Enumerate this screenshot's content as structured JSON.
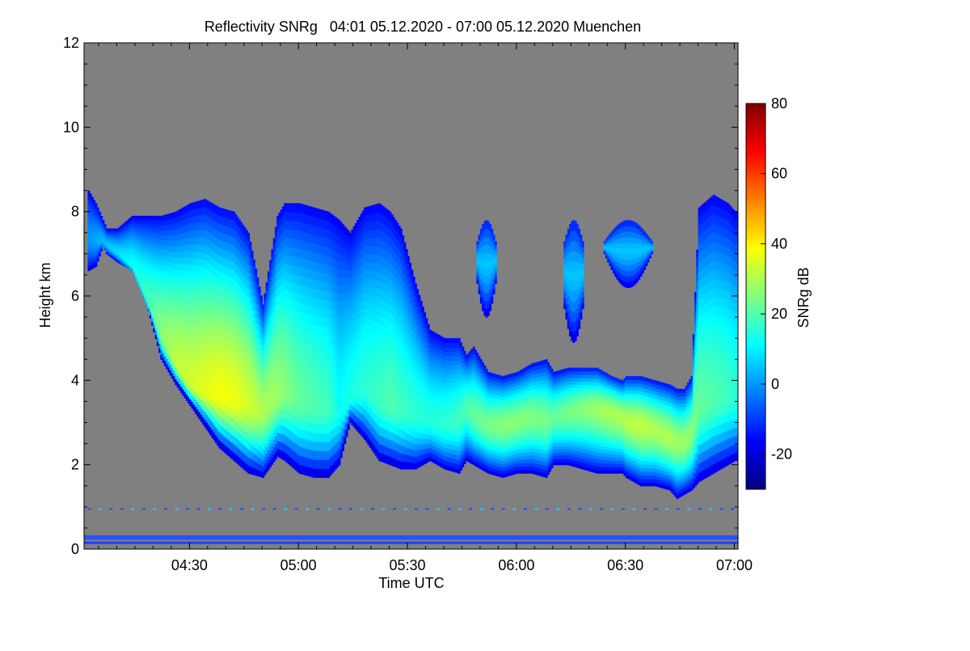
{
  "chart_data": {
    "type": "heatmap",
    "title": "Reflectivity SNRg   04:01 05.12.2020 - 07:00 05.12.2020 Muenchen",
    "xlabel": "Time UTC",
    "ylabel": "Height km",
    "x_ticks": [
      "04:30",
      "05:00",
      "05:30",
      "06:00",
      "06:30",
      "07:00"
    ],
    "x_tick_minutes": [
      270,
      300,
      330,
      360,
      390,
      420
    ],
    "xlim_minutes": [
      241,
      421
    ],
    "y_ticks": [
      "0",
      "2",
      "4",
      "6",
      "8",
      "10",
      "12"
    ],
    "y_tick_values": [
      0,
      2,
      4,
      6,
      8,
      10,
      12
    ],
    "ylim": [
      0,
      12
    ],
    "colorbar": {
      "label": "SNRg dB",
      "ticks": [
        "-20",
        "0",
        "20",
        "40",
        "60",
        "80"
      ],
      "tick_values": [
        -20,
        0,
        20,
        40,
        60,
        80
      ],
      "range": [
        -30,
        80
      ],
      "colormap": [
        "#00007f",
        "#0000ff",
        "#0080ff",
        "#00ffff",
        "#80ff80",
        "#ffff00",
        "#ff8000",
        "#ff0000",
        "#7f0000"
      ]
    },
    "background_color": "#808080",
    "cloud_echo": {
      "minutes": [
        242,
        244,
        246,
        247,
        250,
        254,
        258,
        262,
        266,
        270,
        274,
        278,
        282,
        286,
        290,
        294,
        296,
        300,
        304,
        308,
        311,
        314,
        318,
        322,
        325,
        328,
        332,
        336,
        340,
        344,
        346,
        348,
        352,
        356,
        360,
        364,
        368,
        370,
        374,
        378,
        382,
        386,
        389,
        390,
        394,
        398,
        402,
        404,
        406,
        408,
        410,
        414,
        418,
        420
      ],
      "top_km": [
        8.5,
        8.2,
        7.8,
        7.6,
        7.6,
        7.9,
        7.9,
        7.9,
        8.0,
        8.2,
        8.3,
        8.1,
        8.0,
        7.5,
        5.8,
        7.9,
        8.2,
        8.2,
        8.1,
        8.0,
        7.8,
        7.5,
        8.1,
        8.2,
        8.0,
        7.6,
        6.3,
        5.2,
        5.0,
        5.0,
        4.6,
        4.8,
        4.2,
        4.1,
        4.2,
        4.4,
        4.5,
        4.2,
        4.3,
        4.3,
        4.3,
        4.1,
        4.0,
        4.1,
        4.1,
        4.0,
        3.9,
        3.8,
        3.8,
        4.1,
        8.1,
        8.4,
        8.2,
        8.0
      ],
      "base_km": [
        6.6,
        6.7,
        7.2,
        7.0,
        6.8,
        6.6,
        5.8,
        4.5,
        3.9,
        3.4,
        2.9,
        2.4,
        2.1,
        1.8,
        1.7,
        2.2,
        2.1,
        1.8,
        1.7,
        1.7,
        2.0,
        3.0,
        2.6,
        2.1,
        2.0,
        1.9,
        1.9,
        2.1,
        1.9,
        1.8,
        2.1,
        2.0,
        1.8,
        1.7,
        1.8,
        1.8,
        1.7,
        2.0,
        2.0,
        1.9,
        1.8,
        1.8,
        1.8,
        1.7,
        1.5,
        1.5,
        1.4,
        1.2,
        1.3,
        1.4,
        1.6,
        1.8,
        2.0,
        2.1
      ],
      "core_km": [
        7.3,
        7.3,
        7.3,
        7.2,
        7.0,
        6.7,
        5.9,
        5.0,
        4.3,
        3.8,
        3.6,
        3.5,
        3.4,
        3.3,
        3.2,
        3.5,
        3.6,
        3.4,
        3.3,
        3.2,
        3.1,
        3.5,
        3.7,
        3.4,
        3.3,
        3.2,
        3.1,
        3.0,
        2.9,
        3.0,
        3.3,
        3.1,
        2.9,
        2.9,
        3.0,
        3.1,
        3.0,
        3.1,
        3.2,
        3.3,
        3.3,
        3.2,
        3.1,
        3.0,
        2.9,
        2.8,
        2.6,
        2.5,
        2.5,
        2.7,
        3.2,
        3.4,
        3.5,
        3.5
      ],
      "core_snr_db": [
        0,
        2,
        4,
        5,
        8,
        12,
        18,
        26,
        32,
        34,
        36,
        38,
        37,
        34,
        30,
        28,
        26,
        22,
        20,
        18,
        12,
        14,
        16,
        18,
        20,
        18,
        16,
        15,
        16,
        18,
        20,
        22,
        24,
        26,
        26,
        25,
        24,
        22,
        24,
        26,
        28,
        30,
        30,
        31,
        32,
        30,
        30,
        28,
        28,
        26,
        22,
        20,
        18,
        16
      ]
    },
    "upper_patches": [
      {
        "start": 349,
        "end": 354,
        "top_km": 7.8,
        "base_km": 5.5
      },
      {
        "start": 373,
        "end": 378,
        "top_km": 7.8,
        "base_km": 4.9
      },
      {
        "start": 384,
        "end": 397,
        "top_km": 7.8,
        "base_km": 6.2
      }
    ],
    "ground_layers_km": [
      0.15,
      0.25,
      0.3
    ]
  }
}
